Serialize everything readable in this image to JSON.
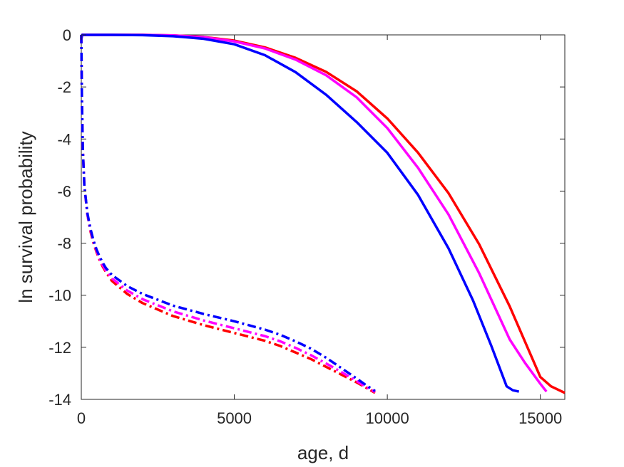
{
  "chart_data": {
    "type": "line",
    "title": "",
    "xlabel": "age, d",
    "ylabel": "ln survival probability",
    "xlim": [
      0,
      15800
    ],
    "ylim": [
      -14,
      0
    ],
    "xticks": [
      0,
      5000,
      10000,
      15000
    ],
    "yticks": [
      -14,
      -12,
      -10,
      -8,
      -6,
      -4,
      -2,
      0
    ],
    "xtick_labels": [
      "0",
      "5000",
      "10000",
      "15000"
    ],
    "ytick_labels": [
      "-14",
      "-12",
      "-10",
      "-8",
      "-6",
      "-4",
      "-2",
      "0"
    ],
    "grid": false,
    "legend": false,
    "series": [
      {
        "color": "#ff0000",
        "style": "solid",
        "x": [
          0,
          30,
          1000,
          2000,
          3000,
          4000,
          5000,
          6000,
          7000,
          8000,
          9000,
          10000,
          11000,
          12000,
          13000,
          14000,
          15000,
          15350,
          15800
        ],
        "y": [
          -0.15,
          0,
          0,
          0,
          -0.02,
          -0.08,
          -0.22,
          -0.48,
          -0.88,
          -1.42,
          -2.17,
          -3.21,
          -4.52,
          -6.08,
          -8.04,
          -10.43,
          -13.14,
          -13.5,
          -13.75
        ]
      },
      {
        "color": "#ff00ff",
        "style": "solid",
        "x": [
          0,
          30,
          1000,
          2000,
          3000,
          4000,
          5000,
          6000,
          7000,
          8000,
          9000,
          10000,
          11000,
          12000,
          13000,
          14000,
          14500,
          15000,
          15200
        ],
        "y": [
          -0.15,
          0,
          0,
          0,
          -0.02,
          -0.09,
          -0.25,
          -0.52,
          -0.95,
          -1.55,
          -2.4,
          -3.58,
          -5.1,
          -6.9,
          -9.15,
          -11.7,
          -12.6,
          -13.4,
          -13.7
        ]
      },
      {
        "color": "#0000ff",
        "style": "solid",
        "x": [
          0,
          30,
          1000,
          2000,
          3000,
          4000,
          5000,
          6000,
          7000,
          8000,
          9000,
          10000,
          11000,
          12000,
          12800,
          13400,
          13900,
          14100,
          14300
        ],
        "y": [
          -0.15,
          0,
          0,
          -0.01,
          -0.05,
          -0.15,
          -0.36,
          -0.78,
          -1.43,
          -2.3,
          -3.35,
          -4.53,
          -6.14,
          -8.2,
          -10.2,
          -11.95,
          -13.5,
          -13.65,
          -13.7
        ]
      },
      {
        "color": "#ff0000",
        "style": "dashdot",
        "x": [
          0,
          20,
          50,
          100,
          200,
          300,
          400,
          500,
          600,
          700,
          800,
          1000,
          1500,
          2000,
          3000,
          4000,
          5000,
          6000,
          6500,
          7000,
          7500,
          8000,
          8500,
          9000,
          9300,
          9600
        ],
        "y": [
          0,
          -2.5,
          -4.4,
          -5.8,
          -6.9,
          -7.55,
          -8.0,
          -8.35,
          -8.65,
          -8.9,
          -9.1,
          -9.45,
          -9.95,
          -10.3,
          -10.8,
          -11.15,
          -11.45,
          -11.75,
          -11.95,
          -12.2,
          -12.45,
          -12.75,
          -13.05,
          -13.35,
          -13.55,
          -13.75
        ]
      },
      {
        "color": "#ff00ff",
        "style": "dashdot",
        "x": [
          0,
          20,
          50,
          100,
          200,
          300,
          400,
          500,
          600,
          700,
          800,
          1000,
          1500,
          2000,
          3000,
          4000,
          5000,
          6000,
          6500,
          7000,
          7500,
          8000,
          8500,
          9000,
          9300,
          9600
        ],
        "y": [
          0,
          -2.5,
          -4.4,
          -5.8,
          -6.9,
          -7.5,
          -7.95,
          -8.3,
          -8.6,
          -8.85,
          -9.05,
          -9.35,
          -9.82,
          -10.15,
          -10.62,
          -10.97,
          -11.27,
          -11.57,
          -11.77,
          -12.02,
          -12.3,
          -12.62,
          -12.95,
          -13.3,
          -13.52,
          -13.72
        ]
      },
      {
        "color": "#0000ff",
        "style": "dashdot",
        "x": [
          0,
          20,
          50,
          100,
          200,
          300,
          400,
          500,
          600,
          700,
          800,
          1000,
          1500,
          2000,
          3000,
          4000,
          5000,
          6000,
          6500,
          7000,
          7500,
          8000,
          8500,
          9000,
          9300,
          9600
        ],
        "y": [
          0,
          -2.5,
          -4.4,
          -5.8,
          -6.85,
          -7.45,
          -7.9,
          -8.25,
          -8.52,
          -8.75,
          -8.95,
          -9.22,
          -9.65,
          -9.95,
          -10.4,
          -10.72,
          -11.0,
          -11.32,
          -11.52,
          -11.77,
          -12.05,
          -12.4,
          -12.8,
          -13.2,
          -13.45,
          -13.68
        ]
      }
    ]
  }
}
